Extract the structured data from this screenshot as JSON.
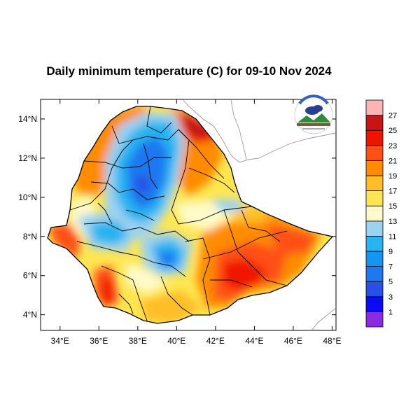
{
  "title": "Daily minimum temperature (C) for 09-10 Nov 2024",
  "map": {
    "lon_range": [
      33,
      48.2
    ],
    "lat_range": [
      3.2,
      15
    ],
    "lon_ticks": [
      "34°E",
      "36°E",
      "38°E",
      "40°E",
      "42°E",
      "44°E",
      "46°E",
      "48°E"
    ],
    "lat_ticks": [
      "4°N",
      "6°N",
      "8°N",
      "10°N",
      "12°N",
      "14°N"
    ],
    "lon_values": [
      34,
      36,
      38,
      40,
      42,
      44,
      46,
      48
    ],
    "lat_values": [
      4,
      6,
      8,
      10,
      12,
      14
    ]
  },
  "colorbar": {
    "labels": [
      "1",
      "3",
      "5",
      "7",
      "9",
      "11",
      "13",
      "15",
      "17",
      "19",
      "21",
      "23",
      "25",
      "27"
    ],
    "colors": [
      "#8a2be2",
      "#0a0af5",
      "#2850e6",
      "#1e78f0",
      "#1496f0",
      "#28b4f0",
      "#9bd2f0",
      "#fffac8",
      "#ffe650",
      "#ffbe28",
      "#ff8c00",
      "#ff5014",
      "#f01400",
      "#c81414",
      "#ffb4b4"
    ]
  },
  "logo": {
    "agency": "Ethiopian Meteorology Institute"
  }
}
